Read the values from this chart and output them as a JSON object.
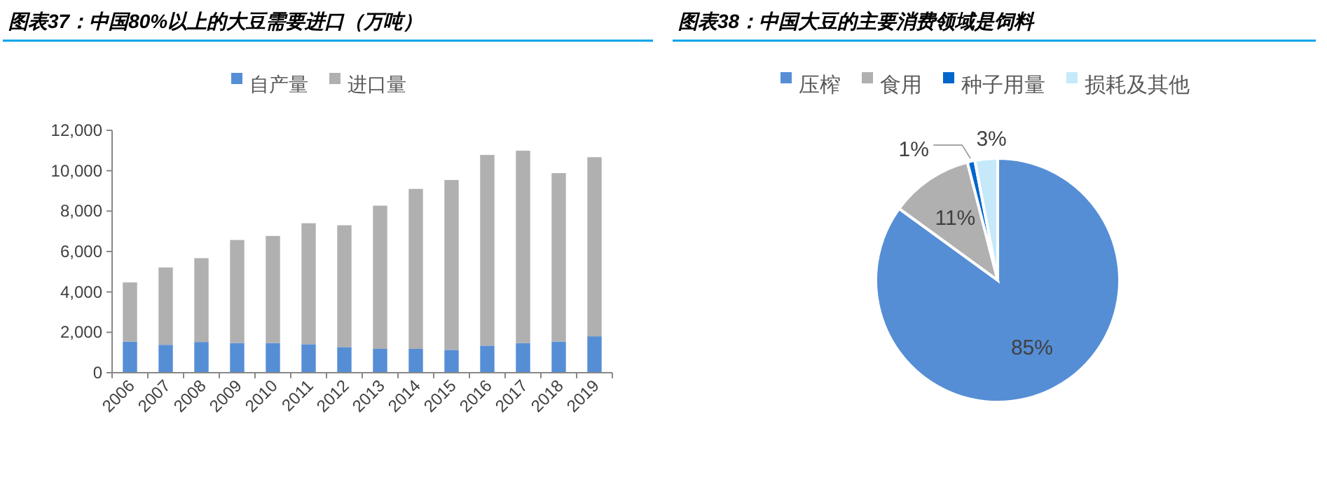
{
  "chart_data": [
    {
      "type": "bar",
      "title": "图表37：中国80%以上的大豆需要进口（万吨）",
      "stacked": true,
      "legend": "top",
      "categories": [
        "2006",
        "2007",
        "2008",
        "2009",
        "2010",
        "2011",
        "2012",
        "2013",
        "2014",
        "2015",
        "2016",
        "2017",
        "2018",
        "2019"
      ],
      "series": [
        {
          "name": "自产量",
          "color": "#558ed5",
          "values": [
            1540,
            1380,
            1520,
            1470,
            1470,
            1410,
            1270,
            1180,
            1180,
            1130,
            1340,
            1470,
            1540,
            1800
          ]
        },
        {
          "name": "进口量",
          "color": "#b0b0b0",
          "values": [
            2930,
            3830,
            4150,
            5100,
            5300,
            5990,
            6030,
            7090,
            7920,
            8410,
            9440,
            9520,
            8340,
            8870
          ]
        }
      ],
      "ylim": [
        0,
        12000
      ],
      "yticks": [
        {
          "value": 0,
          "label": "0"
        },
        {
          "value": 2000,
          "label": "2,000"
        },
        {
          "value": 4000,
          "label": "4,000"
        },
        {
          "value": 6000,
          "label": "6,000"
        },
        {
          "value": 8000,
          "label": "8,000"
        },
        {
          "value": 10000,
          "label": "10,000"
        },
        {
          "value": 12000,
          "label": "12,000"
        }
      ]
    },
    {
      "type": "pie",
      "title": "图表38：中国大豆的主要消费领域是饲料",
      "legend": "top",
      "value_labels": [
        "85%",
        "11%",
        "1%",
        "3%"
      ],
      "categories": [
        "压榨",
        "食用",
        "种子用量",
        "损耗及其他"
      ],
      "values": [
        85,
        11,
        1,
        3
      ],
      "colors": [
        "#558ed5",
        "#b0b0b0",
        "#0066cc",
        "#c6e9fa"
      ]
    }
  ]
}
